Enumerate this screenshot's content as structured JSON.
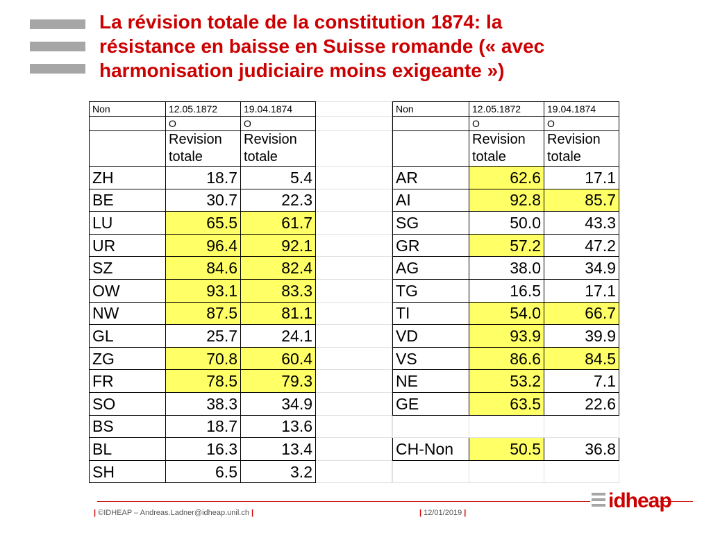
{
  "title_lines": [
    "La révision totale de la constitution 1874: la",
    "résistance en baisse en Suisse romande (« avec",
    "harmonisation judiciaire moins exigeante »)"
  ],
  "table_left": {
    "header": {
      "label": "Non",
      "dates": [
        "12.05.1872",
        "19.04.1874"
      ],
      "codes": [
        "O",
        "O"
      ],
      "types": [
        [
          "Revision",
          "totale"
        ],
        [
          "Revision",
          "totale"
        ]
      ]
    },
    "rows": [
      {
        "canton": "ZH",
        "v1": "18.7",
        "v2": "5.4"
      },
      {
        "canton": "BE",
        "v1": "30.7",
        "v2": "22.3"
      },
      {
        "canton": "LU",
        "v1": "65.5",
        "v2": "61.7"
      },
      {
        "canton": "UR",
        "v1": "96.4",
        "v2": "92.1"
      },
      {
        "canton": "SZ",
        "v1": "84.6",
        "v2": "82.4"
      },
      {
        "canton": "OW",
        "v1": "93.1",
        "v2": "83.3"
      },
      {
        "canton": "NW",
        "v1": "87.5",
        "v2": "81.1"
      },
      {
        "canton": "GL",
        "v1": "25.7",
        "v2": "24.1"
      },
      {
        "canton": "ZG",
        "v1": "70.8",
        "v2": "60.4"
      },
      {
        "canton": "FR",
        "v1": "78.5",
        "v2": "79.3"
      },
      {
        "canton": "SO",
        "v1": "38.3",
        "v2": "34.9"
      },
      {
        "canton": "BS",
        "v1": "18.7",
        "v2": "13.6"
      },
      {
        "canton": "BL",
        "v1": "16.3",
        "v2": "13.4"
      },
      {
        "canton": "SH",
        "v1": "6.5",
        "v2": "3.2"
      }
    ]
  },
  "table_right": {
    "header": {
      "label": "Non",
      "dates": [
        "12.05.1872",
        "19.04.1874"
      ],
      "codes": [
        "O",
        "O"
      ],
      "types": [
        [
          "Revision",
          "totale"
        ],
        [
          "Revision",
          "totale"
        ]
      ]
    },
    "rows": [
      {
        "canton": "AR",
        "v1": "62.6",
        "v2": "17.1"
      },
      {
        "canton": "AI",
        "v1": "92.8",
        "v2": "85.7"
      },
      {
        "canton": "SG",
        "v1": "50.0",
        "v2": "43.3"
      },
      {
        "canton": "GR",
        "v1": "57.2",
        "v2": "47.2"
      },
      {
        "canton": "AG",
        "v1": "38.0",
        "v2": "34.9"
      },
      {
        "canton": "TG",
        "v1": "16.5",
        "v2": "17.1"
      },
      {
        "canton": "TI",
        "v1": "54.0",
        "v2": "66.7"
      },
      {
        "canton": "VD",
        "v1": "93.9",
        "v2": "39.9"
      },
      {
        "canton": "VS",
        "v1": "86.6",
        "v2": "84.5"
      },
      {
        "canton": "NE",
        "v1": "53.2",
        "v2": "7.1"
      },
      {
        "canton": "GE",
        "v1": "63.5",
        "v2": "22.6"
      },
      {
        "canton": "",
        "v1": "",
        "v2": ""
      },
      {
        "canton": "CH-Non",
        "v1": "50.5",
        "v2": "36.8"
      },
      {
        "canton": "",
        "v1": "",
        "v2": ""
      }
    ]
  },
  "highlight_color": "#ffff66",
  "title_color": "#cc0000",
  "footer": {
    "left_sep": "|",
    "left_text": "©IDHEAP – Andreas.Ladner@idheap.unil.ch",
    "right_sep": "|",
    "date": "12/01/2019",
    "logo_text": "idheap"
  }
}
